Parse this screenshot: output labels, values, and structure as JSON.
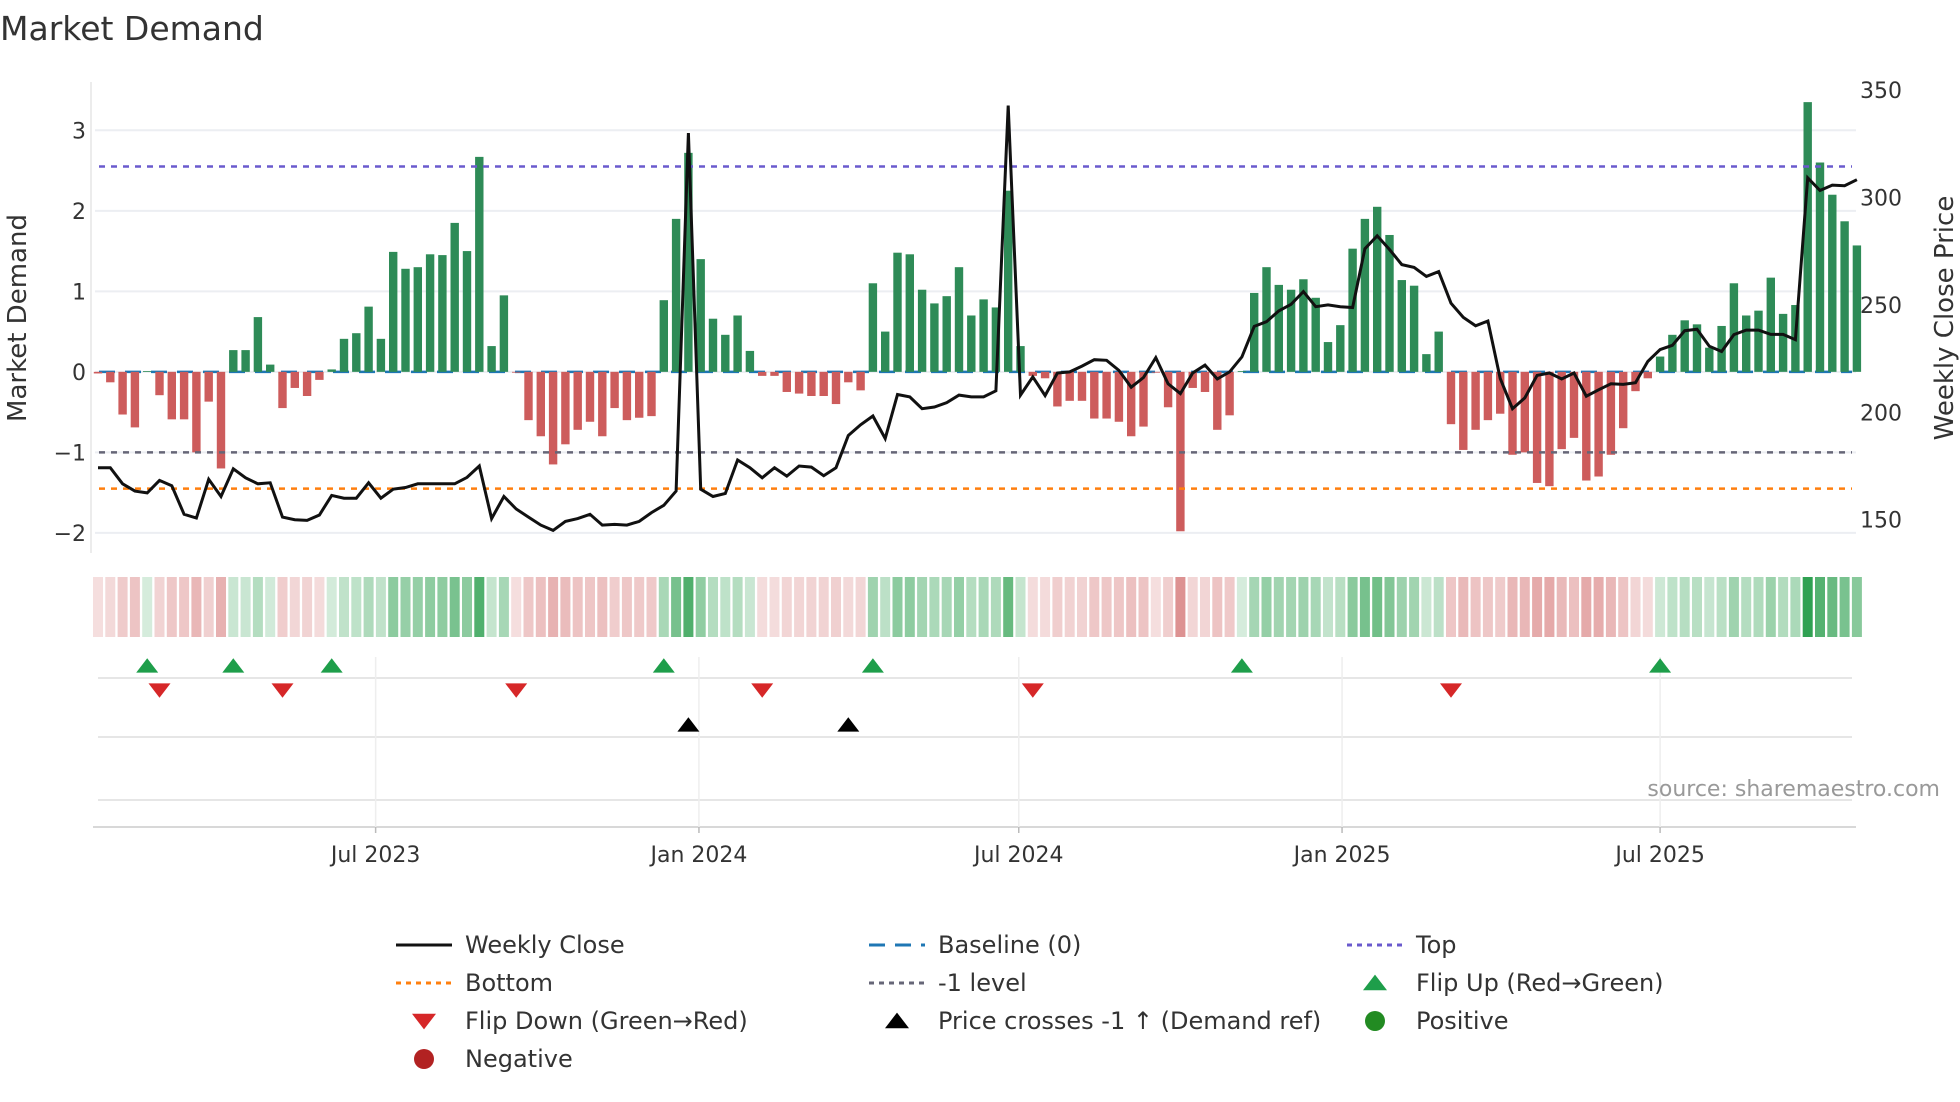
{
  "chart_data": {
    "type": "bar",
    "title": "Market Demand",
    "ylabel": "Market Demand",
    "y2label": "Weekly Close Price",
    "ylim": [
      -2.25,
      3.6
    ],
    "y2lim": [
      134.5,
      353.8
    ],
    "yticks": [
      -2,
      -1,
      0,
      1,
      2,
      3
    ],
    "ytick_labels": [
      "−2",
      "−1",
      "0",
      "1",
      "2",
      "3"
    ],
    "y2ticks": [
      150,
      200,
      250,
      300,
      350
    ],
    "y2tick_labels": [
      "150",
      "200",
      "250",
      "300",
      "350"
    ],
    "x_start_date": "2023-01-24",
    "x_step_days": 7,
    "xticks": [
      {
        "date": "2023-07-01",
        "label": "Jul 2023"
      },
      {
        "date": "2024-01-01",
        "label": "Jan 2024"
      },
      {
        "date": "2024-07-01",
        "label": "Jul 2024"
      },
      {
        "date": "2025-01-01",
        "label": "Jan 2025"
      },
      {
        "date": "2025-07-01",
        "label": "Jul 2025"
      }
    ],
    "grid": true,
    "levels": {
      "top": 2.55,
      "bottom": -1.45,
      "minus_one": -1,
      "baseline": 0
    },
    "demand": [
      -0.02,
      -0.13,
      -0.53,
      -0.69,
      0.01,
      -0.29,
      -0.59,
      -0.59,
      -1.0,
      -0.37,
      -1.2,
      0.27,
      0.27,
      0.68,
      0.09,
      -0.45,
      -0.2,
      -0.3,
      -0.1,
      0.03,
      0.41,
      0.48,
      0.81,
      0.41,
      1.49,
      1.28,
      1.3,
      1.46,
      1.45,
      1.85,
      1.5,
      2.67,
      0.32,
      0.95,
      -0.01,
      -0.6,
      -0.8,
      -1.15,
      -0.9,
      -0.72,
      -0.62,
      -0.8,
      -0.45,
      -0.6,
      -0.57,
      -0.55,
      0.89,
      1.9,
      2.72,
      1.4,
      0.66,
      0.46,
      0.7,
      0.26,
      -0.05,
      -0.05,
      -0.25,
      -0.27,
      -0.3,
      -0.3,
      -0.4,
      -0.13,
      -0.23,
      1.1,
      0.5,
      1.48,
      1.46,
      1.02,
      0.85,
      0.94,
      1.3,
      0.7,
      0.9,
      0.8,
      2.25,
      0.32,
      -0.05,
      -0.08,
      -0.43,
      -0.36,
      -0.36,
      -0.58,
      -0.58,
      -0.62,
      -0.8,
      -0.68,
      -0.01,
      -0.44,
      -1.98,
      -0.2,
      -0.25,
      -0.72,
      -0.54,
      0.01,
      0.98,
      1.3,
      1.08,
      1.02,
      1.15,
      0.92,
      0.37,
      0.58,
      1.53,
      1.9,
      2.05,
      1.7,
      1.14,
      1.07,
      0.22,
      0.5,
      -0.65,
      -0.97,
      -0.72,
      -0.6,
      -0.52,
      -1.03,
      -1.0,
      -1.38,
      -1.42,
      -0.96,
      -0.82,
      -1.35,
      -1.3,
      -1.03,
      -0.7,
      -0.24,
      -0.08,
      0.19,
      0.46,
      0.64,
      0.59,
      0.3,
      0.57,
      1.1,
      0.7,
      0.76,
      1.17,
      0.72,
      0.83,
      3.35,
      2.6,
      2.2,
      1.87,
      1.57
    ],
    "weekly_close": [
      174.2,
      174.2,
      166.7,
      163.3,
      162.5,
      168.3,
      165.8,
      152.5,
      150.8,
      168.8,
      160.8,
      173.7,
      169.5,
      166.7,
      167.2,
      151.2,
      150,
      149.7,
      152.2,
      161.3,
      160,
      160,
      167.2,
      160,
      164.2,
      165,
      166.7,
      166.7,
      166.7,
      166.7,
      169.7,
      175,
      150.5,
      160.8,
      155,
      151.2,
      147.5,
      145,
      149.2,
      150.5,
      152.5,
      147.5,
      147.8,
      147.5,
      149.2,
      153.3,
      156.7,
      163.3,
      330,
      164.2,
      160.8,
      162.2,
      177.8,
      174.2,
      169.5,
      174.2,
      170.3,
      175,
      174.5,
      170.5,
      174.2,
      189.2,
      194.2,
      198.3,
      187.8,
      208.3,
      207.2,
      201.7,
      202.5,
      204.5,
      208,
      207.2,
      207.2,
      210,
      342.8,
      208,
      216.5,
      207.8,
      218.3,
      218.8,
      221.5,
      224.5,
      224.2,
      219.5,
      211.7,
      216.2,
      225.5,
      213.3,
      208.7,
      218.3,
      222,
      215.5,
      218.8,
      225.8,
      240,
      242.2,
      247.2,
      250.3,
      256.2,
      249.2,
      250,
      249.2,
      248.8,
      276.2,
      282.2,
      275.8,
      268.8,
      267.5,
      263.3,
      265.5,
      250.8,
      244.2,
      240.3,
      242.5,
      215.8,
      201.7,
      206.7,
      217.2,
      218.3,
      215.5,
      218.3,
      207.5,
      210.5,
      213.3,
      213,
      213.8,
      223.7,
      229.2,
      231.2,
      238,
      238.7,
      230.8,
      228.3,
      236.2,
      238.3,
      238.3,
      236.3,
      236.3,
      233.8,
      309.2,
      303.3,
      305.8,
      305.5,
      308.3
    ],
    "flip_up_weeks": [
      4,
      11,
      19,
      46,
      63,
      93,
      127
    ],
    "flip_down_weeks": [
      5,
      15,
      34,
      54,
      76,
      110
    ],
    "price_cross_weeks": [
      48,
      61
    ],
    "legend_placement": "bottom-center",
    "legend": [
      {
        "label": "Weekly Close",
        "kind": "line",
        "color": "#111111"
      },
      {
        "label": "Baseline (0)",
        "kind": "dash",
        "color": "#1f77b4"
      },
      {
        "label": "Top",
        "kind": "dot",
        "color": "#6a5acd"
      },
      {
        "label": "Bottom",
        "kind": "dot",
        "color": "#ff7f0e"
      },
      {
        "label": "-1 level",
        "kind": "dot",
        "color": "#666677"
      },
      {
        "label": "Flip Up (Red→Green)",
        "kind": "tri-up",
        "color": "#1e9e4a"
      },
      {
        "label": "Flip Down (Green→Red)",
        "kind": "tri-down",
        "color": "#d62728"
      },
      {
        "label": "Price crosses -1 ↑ (Demand ref)",
        "kind": "tri-up",
        "color": "#000000"
      },
      {
        "label": "Positive",
        "kind": "circle",
        "color": "#228b22"
      },
      {
        "label": "Negative",
        "kind": "circle",
        "color": "#b22222"
      }
    ],
    "source": "source: sharemaestro.com"
  },
  "colors": {
    "positive": "#2e8b57",
    "negative": "#cd5c5c",
    "heat_pos": "46,160,80",
    "heat_neg": "205,92,92"
  }
}
